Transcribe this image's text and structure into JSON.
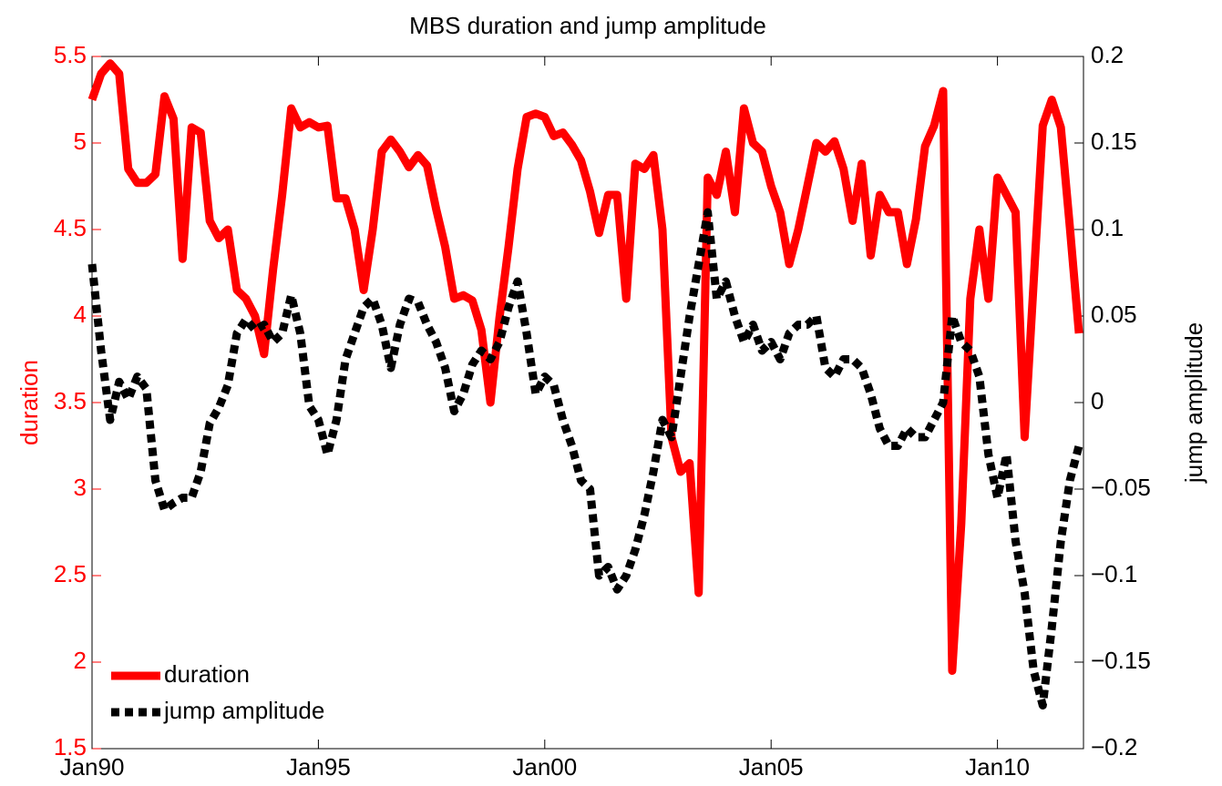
{
  "chart_data": {
    "type": "line",
    "title": "MBS duration and jump amplitude",
    "ylabel": "duration",
    "y2label": "jump amplitude",
    "x": [
      1990,
      1990.2,
      1990.4,
      1990.6,
      1990.8,
      1991,
      1991.2,
      1991.4,
      1991.6,
      1991.8,
      1992,
      1992.2,
      1992.4,
      1992.6,
      1992.8,
      1993,
      1993.2,
      1993.4,
      1993.6,
      1993.8,
      1994,
      1994.2,
      1994.4,
      1994.6,
      1994.8,
      1995,
      1995.2,
      1995.4,
      1995.6,
      1995.8,
      1996,
      1996.2,
      1996.4,
      1996.6,
      1996.8,
      1997,
      1997.2,
      1997.4,
      1997.6,
      1997.8,
      1998,
      1998.2,
      1998.4,
      1998.6,
      1998.8,
      1999,
      1999.2,
      1999.4,
      1999.6,
      1999.8,
      2000,
      2000.2,
      2000.4,
      2000.6,
      2000.8,
      2001,
      2001.2,
      2001.4,
      2001.6,
      2001.8,
      2002,
      2002.2,
      2002.4,
      2002.6,
      2002.8,
      2003,
      2003.2,
      2003.4,
      2003.6,
      2003.8,
      2004,
      2004.2,
      2004.4,
      2004.6,
      2004.8,
      2005,
      2005.2,
      2005.4,
      2005.6,
      2005.8,
      2006,
      2006.2,
      2006.4,
      2006.6,
      2006.8,
      2007,
      2007.2,
      2007.4,
      2007.6,
      2007.8,
      2008,
      2008.2,
      2008.4,
      2008.6,
      2008.8,
      2009,
      2009.2,
      2009.4,
      2009.6,
      2009.8,
      2010,
      2010.2,
      2010.4,
      2010.6,
      2010.8,
      2011,
      2011.2,
      2011.4,
      2011.6,
      2011.8
    ],
    "series": [
      {
        "name": "duration",
        "color": "#ff0000",
        "style": "solid",
        "values": [
          5.25,
          5.4,
          5.46,
          5.4,
          4.85,
          4.77,
          4.77,
          4.82,
          5.27,
          5.14,
          4.33,
          5.09,
          5.06,
          4.55,
          4.45,
          4.5,
          4.15,
          4.1,
          4.0,
          3.78,
          4.27,
          4.7,
          5.2,
          5.09,
          5.12,
          5.09,
          5.1,
          4.68,
          4.68,
          4.5,
          4.15,
          4.5,
          4.95,
          5.02,
          4.95,
          4.86,
          4.93,
          4.87,
          4.62,
          4.4,
          4.1,
          4.12,
          4.09,
          3.92,
          3.5,
          3.99,
          4.4,
          4.85,
          5.15,
          5.17,
          5.15,
          5.04,
          5.06,
          4.99,
          4.9,
          4.72,
          4.48,
          4.7,
          4.7,
          4.1,
          4.88,
          4.85,
          4.93,
          4.5,
          3.3,
          3.1,
          3.15,
          2.4,
          4.8,
          4.7,
          4.95,
          4.6,
          5.2,
          5.0,
          4.95,
          4.75,
          4.6,
          4.3,
          4.5,
          4.75,
          5.0,
          4.95,
          5.01,
          4.85,
          4.55,
          4.88,
          4.35,
          4.7,
          4.6,
          4.6,
          4.3,
          4.56,
          4.98,
          5.1,
          5.3,
          1.95,
          2.8,
          4.1,
          4.5,
          4.1,
          4.8,
          4.7,
          4.6,
          3.3,
          4.2,
          5.1,
          5.25,
          5.09,
          4.51,
          3.9
        ]
      },
      {
        "name": "jump amplitude",
        "color": "#000000",
        "style": "dotted",
        "axis": "y2",
        "values": [
          0.08,
          0.03,
          -0.01,
          0.012,
          0.002,
          0.015,
          0.008,
          -0.045,
          -0.062,
          -0.058,
          -0.055,
          -0.055,
          -0.04,
          -0.012,
          -0.003,
          0.01,
          0.04,
          0.048,
          0.042,
          0.045,
          0.035,
          0.04,
          0.062,
          0.04,
          -0.002,
          -0.01,
          -0.03,
          -0.01,
          0.025,
          0.04,
          0.055,
          0.06,
          0.045,
          0.02,
          0.045,
          0.06,
          0.058,
          0.045,
          0.035,
          0.02,
          -0.005,
          0.005,
          0.022,
          0.03,
          0.025,
          0.035,
          0.055,
          0.07,
          0.04,
          0.005,
          0.015,
          0.01,
          -0.01,
          -0.025,
          -0.045,
          -0.05,
          -0.1,
          -0.095,
          -0.108,
          -0.1,
          -0.085,
          -0.065,
          -0.04,
          -0.01,
          -0.02,
          0.015,
          0.05,
          0.08,
          0.11,
          0.06,
          0.07,
          0.05,
          0.035,
          0.045,
          0.03,
          0.035,
          0.025,
          0.04,
          0.045,
          0.045,
          0.05,
          0.02,
          0.015,
          0.025,
          0.025,
          0.02,
          0.005,
          -0.015,
          -0.025,
          -0.025,
          -0.015,
          -0.02,
          -0.02,
          -0.01,
          0.0,
          0.05,
          0.035,
          0.03,
          0.015,
          -0.03,
          -0.055,
          -0.03,
          -0.08,
          -0.11,
          -0.155,
          -0.175,
          -0.13,
          -0.08,
          -0.045,
          -0.025
        ]
      }
    ],
    "xlim": [
      1990,
      2011.9
    ],
    "xticks": [
      {
        "value": 1990,
        "label": "Jan90"
      },
      {
        "value": 1995,
        "label": "Jan95"
      },
      {
        "value": 2000,
        "label": "Jan00"
      },
      {
        "value": 2005,
        "label": "Jan05"
      },
      {
        "value": 2010,
        "label": "Jan10"
      }
    ],
    "ylim": [
      1.5,
      5.5
    ],
    "yticks": [
      1.5,
      2,
      2.5,
      3,
      3.5,
      4,
      4.5,
      5,
      5.5
    ],
    "ycolor": "#ff0000",
    "y2lim": [
      -0.2,
      0.2
    ],
    "y2ticks": [
      {
        "value": -0.2,
        "label": "−0.2"
      },
      {
        "value": -0.15,
        "label": "−0.15"
      },
      {
        "value": -0.1,
        "label": "−0.1"
      },
      {
        "value": -0.05,
        "label": "−0.05"
      },
      0,
      0.05,
      0.1,
      0.15,
      0.2
    ],
    "legend": "lower left",
    "grid": false
  }
}
